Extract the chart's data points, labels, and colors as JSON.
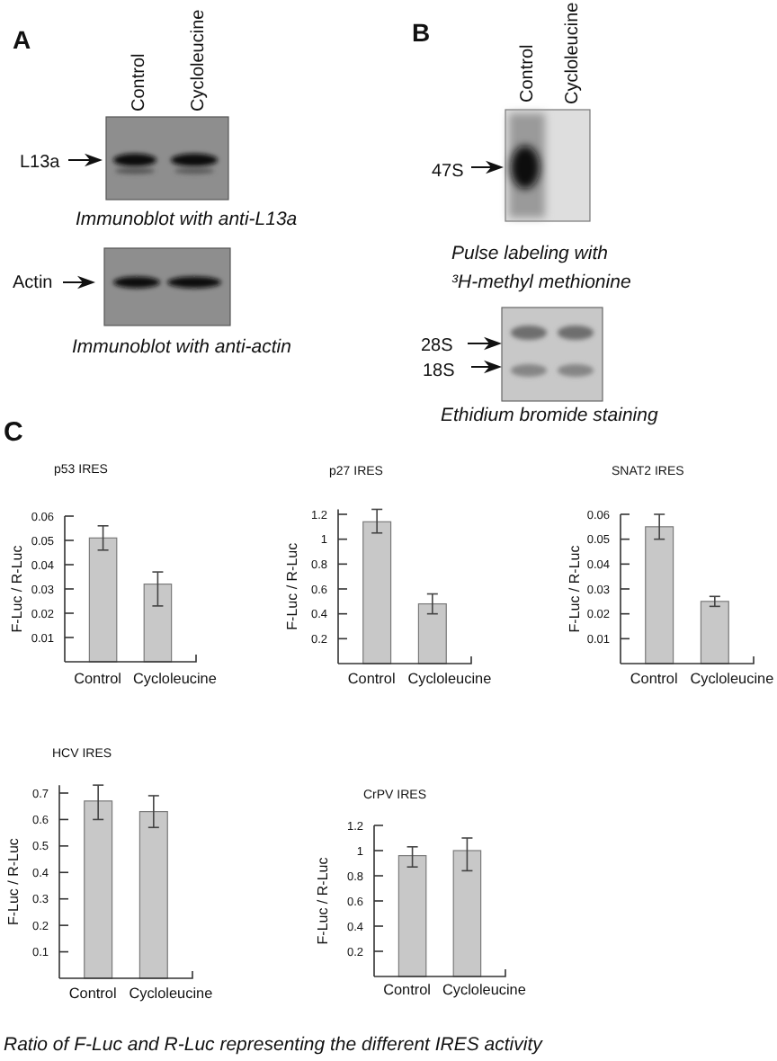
{
  "chart_data": [
    {
      "type": "other",
      "title": "A",
      "annotations": [
        "Control",
        "Cycloleucine",
        "L13a",
        "Immunoblot with anti-L13a",
        "Actin",
        "Immunoblot with anti-actin"
      ]
    },
    {
      "type": "other",
      "title": "B",
      "annotations": [
        "Control",
        "Cycloleucine",
        "47S",
        "Pulse labeling with",
        "³H-methyl methionine",
        "28S",
        "18S",
        "Ethidium bromide staining"
      ]
    },
    {
      "type": "bar",
      "title": "p53 IRES",
      "annotations": [
        "C"
      ],
      "ylabel": "F-Luc / R-Luc",
      "categories": [
        "Control",
        "Cycloleucine"
      ],
      "values": [
        0.051,
        0.032
      ],
      "errors": [
        0.005,
        [
          0.023,
          0.037
        ]
      ],
      "color": "#c8c8c8",
      "ylim": [
        0,
        0.06
      ],
      "yticks": [
        0.01,
        0.02,
        0.03,
        0.04,
        0.05,
        0.06
      ]
    },
    {
      "type": "bar",
      "title": "p27 IRES",
      "ylabel": "F-Luc / R-Luc",
      "categories": [
        "Control",
        "Cycloleucine"
      ],
      "values": [
        1.14,
        0.48
      ],
      "errors": [
        [
          1.05,
          1.24
        ],
        0.08
      ],
      "color": "#c8c8c8",
      "ylim": [
        0,
        1.24
      ],
      "yticks": [
        0.2,
        0.4,
        0.6,
        0.8,
        1,
        1.2
      ]
    },
    {
      "type": "bar",
      "title": "SNAT2 IRES",
      "ylabel": "F-Luc / R-Luc",
      "categories": [
        "Control",
        "Cycloleucine"
      ],
      "values": [
        0.055,
        0.025
      ],
      "errors": [
        0.005,
        0.002
      ],
      "color": "#c8c8c8",
      "ylim": [
        0,
        0.06
      ],
      "yticks": [
        0.01,
        0.02,
        0.03,
        0.04,
        0.05,
        0.06
      ]
    },
    {
      "type": "bar",
      "title": "HCV IRES",
      "annotations": [
        "Ratio of F-Luc and R-Luc representing the different IRES activity"
      ],
      "ylabel": "F-Luc / R-Luc",
      "categories": [
        "Control",
        "Cycloleucine"
      ],
      "values": [
        0.67,
        0.63
      ],
      "errors": [
        [
          0.6,
          0.73
        ],
        0.06
      ],
      "color": "#c8c8c8",
      "ylim": [
        0,
        0.73
      ],
      "yticks": [
        0.1,
        0.2,
        0.3,
        0.4,
        0.5,
        0.6,
        0.7
      ]
    },
    {
      "type": "bar",
      "title": "CrPV IRES",
      "ylabel": "F-Luc / R-Luc",
      "categories": [
        "Control",
        "Cycloleucine"
      ],
      "values": [
        0.96,
        1.0
      ],
      "errors": [
        [
          0.87,
          1.03
        ],
        [
          0.84,
          1.1
        ]
      ],
      "color": "#c8c8c8",
      "ylim": [
        0,
        1.2
      ],
      "yticks": [
        0.2,
        0.4,
        0.6,
        0.8,
        1,
        1.2
      ]
    }
  ]
}
